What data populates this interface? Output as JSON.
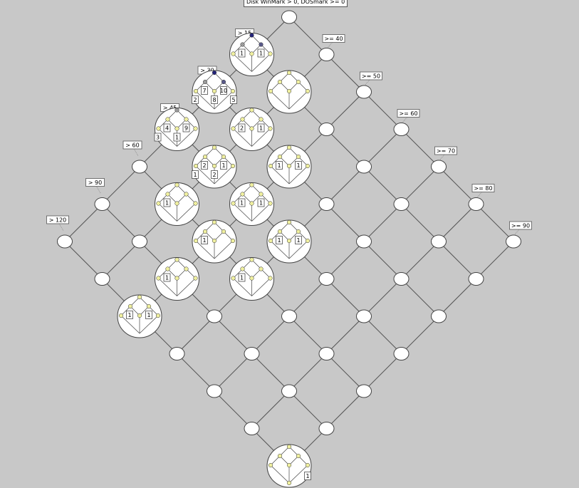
{
  "title": "Disk WinMark > 0, DOSmark >= 0",
  "colors": {
    "background": "#c8c8c8",
    "node_fill": "#ffffff",
    "edge": "#555555",
    "dot_yellow": "#f0f0a0",
    "dot_gray": "#9a9a9a",
    "dot_dark": "#23237a",
    "dot_blue": "#5a5a8a"
  },
  "left_labels": [
    "> 15",
    "> 30",
    "> 45",
    "> 60",
    "> 90",
    "> 120"
  ],
  "right_labels": [
    ">= 40",
    ">= 50",
    ">= 60",
    ">= 70",
    ">= 80",
    ">= 90"
  ],
  "rich_nodes": [
    {
      "i": 1,
      "j": 0,
      "numbers": [
        "1",
        "1"
      ]
    },
    {
      "i": 1,
      "j": 1,
      "numbers": []
    },
    {
      "i": 2,
      "j": 0,
      "numbers": [
        "7",
        "10",
        "2",
        "8",
        "5"
      ]
    },
    {
      "i": 2,
      "j": 1,
      "numbers": [
        "2",
        "1"
      ]
    },
    {
      "i": 2,
      "j": 2,
      "numbers": [
        "1",
        "1"
      ]
    },
    {
      "i": 3,
      "j": 0,
      "numbers": [
        "4",
        "9",
        "3",
        "1"
      ]
    },
    {
      "i": 3,
      "j": 1,
      "numbers": [
        "2",
        "1",
        "1",
        "2"
      ]
    },
    {
      "i": 3,
      "j": 2,
      "numbers": [
        "1",
        "1"
      ]
    },
    {
      "i": 3,
      "j": 3,
      "numbers": [
        "1",
        "1"
      ]
    },
    {
      "i": 4,
      "j": 1,
      "numbers": [
        "1"
      ]
    },
    {
      "i": 4,
      "j": 2,
      "numbers": [
        "1"
      ]
    },
    {
      "i": 4,
      "j": 3,
      "numbers": [
        "1"
      ]
    },
    {
      "i": 5,
      "j": 2,
      "numbers": [
        "1"
      ]
    },
    {
      "i": 6,
      "j": 2,
      "numbers": [
        "1",
        "1"
      ]
    },
    {
      "i": 6,
      "j": 6,
      "numbers": [
        "1"
      ]
    }
  ]
}
